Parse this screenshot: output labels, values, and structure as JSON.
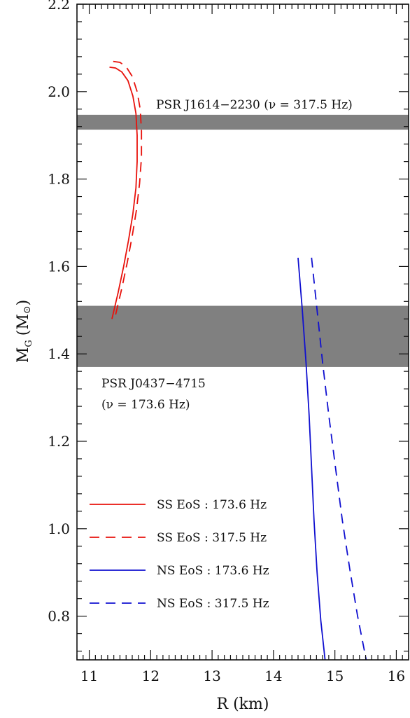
{
  "chart_data": {
    "type": "line",
    "xlabel": "R (km)",
    "ylabel": "M",
    "ylabel_sub": "G",
    "ylabel_unit": "(M",
    "ylabel_unit_sub": "⊙",
    "ylabel_unit_close": ")",
    "xlim": [
      10.8,
      16.2
    ],
    "ylim": [
      0.7,
      2.2
    ],
    "x_ticks": [
      11,
      12,
      13,
      14,
      15,
      16
    ],
    "y_ticks": [
      0.8,
      1.0,
      1.2,
      1.4,
      1.6,
      1.8,
      2.0,
      2.2
    ],
    "y_tick_labels": [
      "0.8",
      "1.0",
      "1.2",
      "1.4",
      "1.6",
      "1.8",
      "2.0",
      "2.2"
    ],
    "bands": [
      {
        "ymin": 1.913,
        "ymax": 1.947,
        "color": "#808080",
        "label": "PSR J1614−2230 (ν = 317.5 Hz)"
      },
      {
        "ymin": 1.37,
        "ymax": 1.51,
        "color": "#808080",
        "label_line1": "PSR J0437−4715",
        "label_line2": "(ν = 173.6 Hz)"
      }
    ],
    "series": [
      {
        "name": "SS EoS : 173.6 Hz",
        "color": "#e8120c",
        "dash": "solid",
        "points": [
          [
            11.37,
            1.48
          ],
          [
            11.47,
            1.54
          ],
          [
            11.56,
            1.6
          ],
          [
            11.64,
            1.66
          ],
          [
            11.71,
            1.72
          ],
          [
            11.76,
            1.78
          ],
          [
            11.78,
            1.84
          ],
          [
            11.78,
            1.9
          ],
          [
            11.76,
            1.95
          ],
          [
            11.71,
            1.99
          ],
          [
            11.63,
            2.025
          ],
          [
            11.53,
            2.045
          ],
          [
            11.43,
            2.054
          ],
          [
            11.33,
            2.056
          ]
        ]
      },
      {
        "name": "SS EoS : 317.5 Hz",
        "color": "#e8120c",
        "dash": "dashed",
        "points": [
          [
            11.43,
            1.49
          ],
          [
            11.53,
            1.55
          ],
          [
            11.62,
            1.61
          ],
          [
            11.7,
            1.67
          ],
          [
            11.77,
            1.73
          ],
          [
            11.82,
            1.79
          ],
          [
            11.85,
            1.85
          ],
          [
            11.85,
            1.91
          ],
          [
            11.83,
            1.96
          ],
          [
            11.78,
            2.0
          ],
          [
            11.7,
            2.035
          ],
          [
            11.6,
            2.057
          ],
          [
            11.5,
            2.067
          ],
          [
            11.39,
            2.069
          ]
        ]
      },
      {
        "name": "NS EoS : 173.6 Hz",
        "color": "#1010d0",
        "dash": "solid",
        "points": [
          [
            14.4,
            1.62
          ],
          [
            14.47,
            1.5
          ],
          [
            14.53,
            1.38
          ],
          [
            14.58,
            1.26
          ],
          [
            14.62,
            1.14
          ],
          [
            14.66,
            1.02
          ],
          [
            14.71,
            0.9
          ],
          [
            14.77,
            0.79
          ],
          [
            14.84,
            0.7
          ]
        ]
      },
      {
        "name": "NS EoS : 317.5 Hz",
        "color": "#1010d0",
        "dash": "dashed",
        "points": [
          [
            14.62,
            1.62
          ],
          [
            14.71,
            1.5
          ],
          [
            14.8,
            1.38
          ],
          [
            14.9,
            1.26
          ],
          [
            15.01,
            1.14
          ],
          [
            15.12,
            1.02
          ],
          [
            15.24,
            0.91
          ],
          [
            15.37,
            0.8
          ],
          [
            15.51,
            0.7
          ]
        ]
      }
    ],
    "legend": {
      "placement": "bottom-left"
    },
    "grid": false
  }
}
